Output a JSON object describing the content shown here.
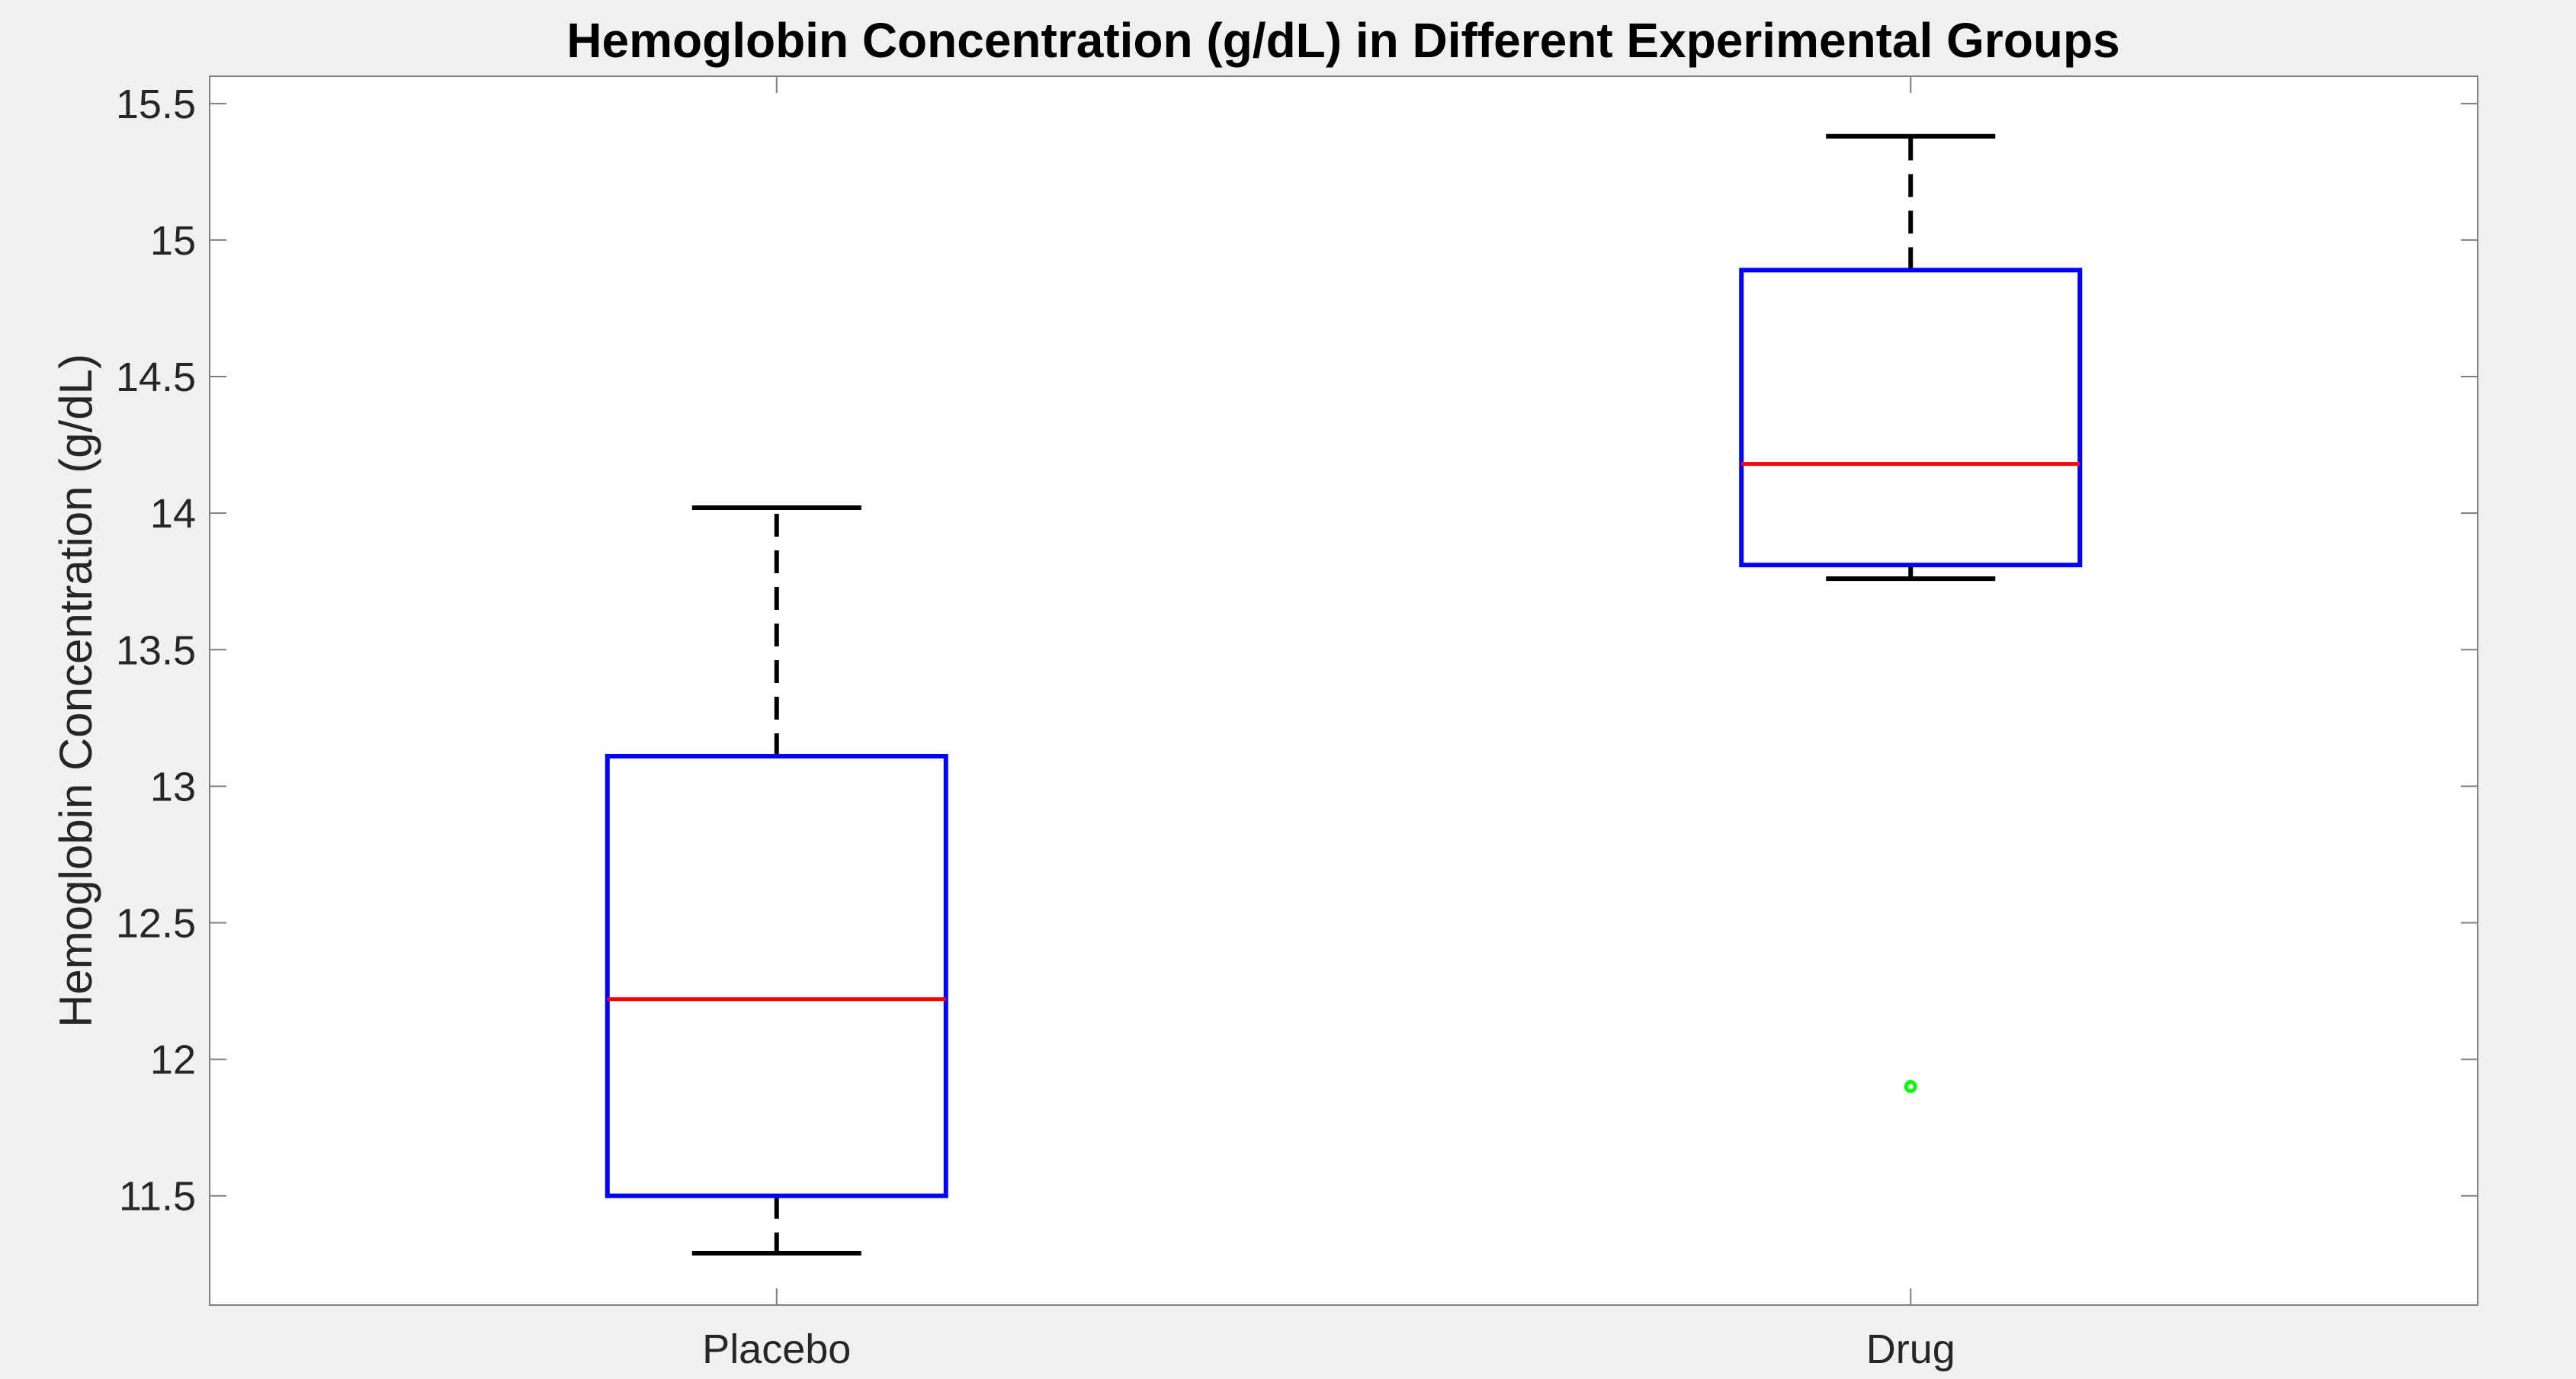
{
  "chart_data": {
    "type": "box",
    "title": "Hemoglobin Concentration (g/dL) in Different Experimental Groups",
    "xlabel": "",
    "ylabel": "Hemoglobin Concentration (g/dL)",
    "ylim": [
      11.1,
      15.6
    ],
    "yticks": [
      11.5,
      12,
      12.5,
      13,
      13.5,
      14,
      14.5,
      15,
      15.5
    ],
    "ytick_labels": [
      "11.5",
      "12",
      "12.5",
      "13",
      "13.5",
      "14",
      "14.5",
      "15",
      "15.5"
    ],
    "categories": [
      "Placebo",
      "Drug"
    ],
    "boxes": [
      {
        "category": "Placebo",
        "whisker_low": 11.29,
        "q1": 11.5,
        "median": 12.22,
        "q3": 13.11,
        "whisker_high": 14.02,
        "outliers": []
      },
      {
        "category": "Drug",
        "whisker_low": 13.76,
        "q1": 13.81,
        "median": 14.18,
        "q3": 14.89,
        "whisker_high": 15.38,
        "outliers": [
          11.9
        ]
      }
    ],
    "colors": {
      "box": "#0000ff",
      "median": "#ff0000",
      "whisker": "#000000",
      "outlier": "#00ff00",
      "axes": "#808080"
    },
    "grid": false,
    "legend": "none"
  }
}
